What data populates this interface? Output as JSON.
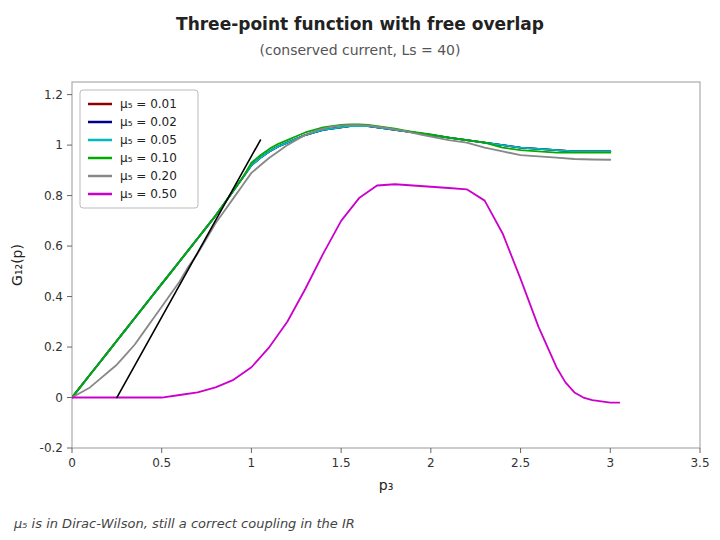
{
  "chart_data": {
    "type": "line",
    "title": "Three-point function with free overlap",
    "subtitle": "(conserved current, Ls = 40)",
    "x_label": "p₃",
    "y_label": "G₁₂(p)",
    "annotations": [
      "μ₅ is in Dirac-Wilson, still a correct coupling in the IR"
    ],
    "xlim": [
      0,
      3.5
    ],
    "ylim": [
      -0.2,
      1.25
    ],
    "xticks": [
      0,
      0.5,
      1,
      1.5,
      2,
      2.5,
      3,
      3.5
    ],
    "yticks": [
      -0.2,
      0,
      0.2,
      0.4,
      0.6,
      0.8,
      1,
      1.2
    ],
    "grid": false,
    "legend": "upper left",
    "series": [
      {
        "color": "#000000",
        "x": [
          0.25,
          1.05
        ],
        "values": [
          0.0,
          1.02
        ]
      },
      {
        "name": "μ₅ = 0.01",
        "color": "#8b0000",
        "x": [
          0.0,
          0.05,
          0.1,
          0.15,
          0.2,
          0.25,
          0.3,
          0.35,
          0.4,
          0.45,
          0.5,
          0.55,
          0.6,
          0.65,
          0.7,
          0.75,
          0.8,
          0.85,
          0.9,
          0.95,
          1.0,
          1.05,
          1.1,
          1.15,
          1.2,
          1.25,
          1.3,
          1.35,
          1.4,
          1.45,
          1.5,
          1.55,
          1.6,
          1.65,
          1.7,
          1.75,
          1.8,
          1.85,
          1.9,
          1.95,
          2.0,
          2.1,
          2.2,
          2.3,
          2.4,
          2.5,
          2.6,
          2.7,
          2.8,
          2.9,
          3.0
        ],
        "values": [
          0.0,
          0.045,
          0.09,
          0.135,
          0.18,
          0.225,
          0.27,
          0.315,
          0.36,
          0.405,
          0.45,
          0.495,
          0.54,
          0.585,
          0.63,
          0.675,
          0.72,
          0.77,
          0.82,
          0.87,
          0.92,
          0.95,
          0.975,
          0.995,
          1.01,
          1.025,
          1.04,
          1.05,
          1.06,
          1.065,
          1.07,
          1.075,
          1.075,
          1.075,
          1.07,
          1.065,
          1.06,
          1.055,
          1.05,
          1.045,
          1.04,
          1.03,
          1.02,
          1.01,
          1.0,
          0.99,
          0.985,
          0.98,
          0.975,
          0.975,
          0.975
        ]
      },
      {
        "name": "μ₅ = 0.02",
        "color": "#00008b",
        "x": [
          0.0,
          0.05,
          0.1,
          0.15,
          0.2,
          0.25,
          0.3,
          0.35,
          0.4,
          0.45,
          0.5,
          0.55,
          0.6,
          0.65,
          0.7,
          0.75,
          0.8,
          0.85,
          0.9,
          0.95,
          1.0,
          1.05,
          1.1,
          1.15,
          1.2,
          1.25,
          1.3,
          1.35,
          1.4,
          1.45,
          1.5,
          1.55,
          1.6,
          1.65,
          1.7,
          1.75,
          1.8,
          1.85,
          1.9,
          1.95,
          2.0,
          2.1,
          2.2,
          2.3,
          2.4,
          2.5,
          2.6,
          2.7,
          2.8,
          2.9,
          3.0
        ],
        "values": [
          0.0,
          0.045,
          0.09,
          0.135,
          0.18,
          0.225,
          0.27,
          0.315,
          0.36,
          0.405,
          0.45,
          0.495,
          0.54,
          0.585,
          0.63,
          0.675,
          0.72,
          0.77,
          0.82,
          0.87,
          0.92,
          0.95,
          0.975,
          0.995,
          1.01,
          1.025,
          1.04,
          1.05,
          1.06,
          1.065,
          1.07,
          1.075,
          1.075,
          1.075,
          1.07,
          1.065,
          1.06,
          1.055,
          1.05,
          1.045,
          1.04,
          1.03,
          1.02,
          1.01,
          1.0,
          0.99,
          0.985,
          0.98,
          0.975,
          0.975,
          0.975
        ]
      },
      {
        "name": "μ₅ = 0.05",
        "color": "#00bbbb",
        "x": [
          0.0,
          0.05,
          0.1,
          0.15,
          0.2,
          0.25,
          0.3,
          0.35,
          0.4,
          0.45,
          0.5,
          0.55,
          0.6,
          0.65,
          0.7,
          0.75,
          0.8,
          0.85,
          0.9,
          0.95,
          1.0,
          1.05,
          1.1,
          1.15,
          1.2,
          1.25,
          1.3,
          1.35,
          1.4,
          1.45,
          1.5,
          1.55,
          1.6,
          1.65,
          1.7,
          1.75,
          1.8,
          1.85,
          1.9,
          1.95,
          2.0,
          2.1,
          2.2,
          2.3,
          2.4,
          2.5,
          2.6,
          2.7,
          2.8,
          2.9,
          3.0
        ],
        "values": [
          0.0,
          0.045,
          0.09,
          0.135,
          0.18,
          0.225,
          0.27,
          0.315,
          0.36,
          0.405,
          0.45,
          0.495,
          0.54,
          0.585,
          0.63,
          0.675,
          0.72,
          0.77,
          0.82,
          0.87,
          0.92,
          0.95,
          0.975,
          0.995,
          1.01,
          1.025,
          1.04,
          1.05,
          1.06,
          1.065,
          1.07,
          1.075,
          1.075,
          1.075,
          1.07,
          1.065,
          1.06,
          1.055,
          1.05,
          1.045,
          1.04,
          1.03,
          1.02,
          1.01,
          1.0,
          0.99,
          0.985,
          0.98,
          0.975,
          0.975,
          0.975
        ]
      },
      {
        "name": "μ₅ = 0.10",
        "color": "#00aa00",
        "x": [
          0.0,
          0.05,
          0.1,
          0.15,
          0.2,
          0.25,
          0.3,
          0.35,
          0.4,
          0.45,
          0.5,
          0.55,
          0.6,
          0.65,
          0.7,
          0.75,
          0.8,
          0.85,
          0.9,
          0.95,
          1.0,
          1.05,
          1.1,
          1.15,
          1.2,
          1.25,
          1.3,
          1.35,
          1.4,
          1.45,
          1.5,
          1.55,
          1.6,
          1.65,
          1.7,
          1.75,
          1.8,
          1.85,
          1.9,
          1.95,
          2.0,
          2.1,
          2.2,
          2.3,
          2.4,
          2.5,
          2.6,
          2.7,
          2.8,
          2.9,
          3.0
        ],
        "values": [
          0.0,
          0.045,
          0.09,
          0.135,
          0.18,
          0.225,
          0.27,
          0.315,
          0.36,
          0.405,
          0.45,
          0.495,
          0.54,
          0.585,
          0.63,
          0.675,
          0.72,
          0.77,
          0.82,
          0.87,
          0.93,
          0.96,
          0.985,
          1.005,
          1.02,
          1.035,
          1.05,
          1.06,
          1.07,
          1.075,
          1.08,
          1.082,
          1.082,
          1.08,
          1.075,
          1.07,
          1.065,
          1.058,
          1.052,
          1.047,
          1.042,
          1.03,
          1.02,
          1.01,
          0.99,
          0.98,
          0.975,
          0.97,
          0.97,
          0.97,
          0.97
        ]
      },
      {
        "name": "μ₅ = 0.20",
        "color": "#888888",
        "x": [
          0.0,
          0.05,
          0.1,
          0.15,
          0.2,
          0.25,
          0.3,
          0.35,
          0.4,
          0.45,
          0.5,
          0.55,
          0.6,
          0.65,
          0.7,
          0.75,
          0.8,
          0.85,
          0.9,
          0.95,
          1.0,
          1.05,
          1.1,
          1.15,
          1.2,
          1.25,
          1.3,
          1.35,
          1.4,
          1.45,
          1.5,
          1.55,
          1.6,
          1.65,
          1.7,
          1.75,
          1.8,
          1.85,
          1.9,
          1.95,
          2.0,
          2.1,
          2.2,
          2.3,
          2.4,
          2.5,
          2.6,
          2.7,
          2.8,
          2.9,
          3.0
        ],
        "values": [
          0.0,
          0.02,
          0.04,
          0.07,
          0.1,
          0.13,
          0.17,
          0.21,
          0.26,
          0.31,
          0.36,
          0.41,
          0.46,
          0.52,
          0.57,
          0.63,
          0.69,
          0.74,
          0.79,
          0.84,
          0.89,
          0.92,
          0.95,
          0.975,
          1.0,
          1.02,
          1.04,
          1.055,
          1.065,
          1.073,
          1.077,
          1.079,
          1.079,
          1.077,
          1.073,
          1.068,
          1.062,
          1.056,
          1.048,
          1.041,
          1.034,
          1.02,
          1.01,
          0.99,
          0.975,
          0.96,
          0.955,
          0.95,
          0.945,
          0.943,
          0.942
        ]
      },
      {
        "name": "μ₅ = 0.50",
        "color": "#cc00cc",
        "x": [
          0.0,
          0.1,
          0.2,
          0.3,
          0.4,
          0.5,
          0.6,
          0.7,
          0.8,
          0.9,
          1.0,
          1.1,
          1.2,
          1.3,
          1.4,
          1.5,
          1.6,
          1.7,
          1.8,
          1.9,
          2.0,
          2.1,
          2.2,
          2.3,
          2.4,
          2.5,
          2.6,
          2.7,
          2.75,
          2.8,
          2.85,
          2.9,
          3.0,
          3.05
        ],
        "values": [
          0.0,
          0.0,
          0.0,
          0.0,
          0.0,
          0.0,
          0.01,
          0.02,
          0.04,
          0.07,
          0.12,
          0.2,
          0.3,
          0.43,
          0.57,
          0.7,
          0.79,
          0.84,
          0.845,
          0.84,
          0.835,
          0.83,
          0.825,
          0.78,
          0.65,
          0.47,
          0.28,
          0.12,
          0.06,
          0.02,
          0.0,
          -0.01,
          -0.02,
          -0.02
        ]
      }
    ]
  }
}
